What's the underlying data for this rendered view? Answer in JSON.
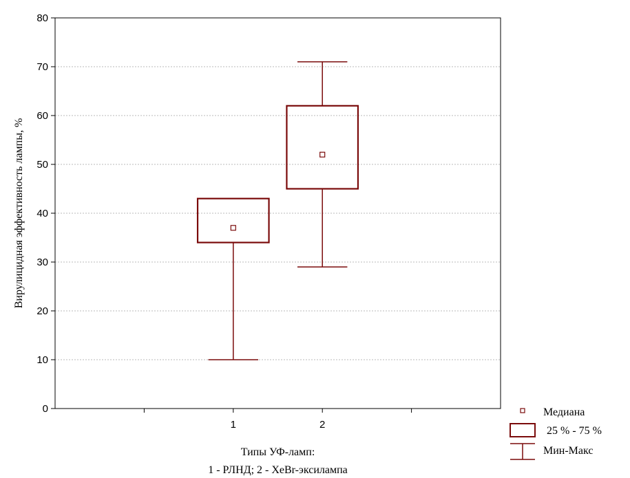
{
  "chart_data": {
    "type": "boxplot",
    "title": "",
    "ylabel": "Вирулицидная эффективность лампы, %",
    "xlabel_line1": "Типы УФ-ламп:",
    "xlabel_line2": "1 - РЛНД; 2 - XeBr-эксилампа",
    "ylim": [
      0,
      80
    ],
    "yticks": [
      0,
      10,
      20,
      30,
      40,
      50,
      60,
      70,
      80
    ],
    "ytick_labels": [
      "0",
      "10",
      "20",
      "30",
      "40",
      "50",
      "60",
      "70",
      "80"
    ],
    "xlim": [
      0,
      5
    ],
    "categories": [
      "1",
      "2"
    ],
    "grid": true,
    "color": "#7a0a0a",
    "boxes": [
      {
        "category": "1",
        "min": 10,
        "q1": 34,
        "median": 37,
        "q3": 43,
        "max": 43
      },
      {
        "category": "2",
        "min": 29,
        "q1": 45,
        "median": 52,
        "q3": 62,
        "max": 71
      }
    ],
    "legend": {
      "position": "bottom-right",
      "median": "Медиана",
      "iqr": "25 %  - 75 %",
      "minmax": "Мин-Макс"
    }
  }
}
